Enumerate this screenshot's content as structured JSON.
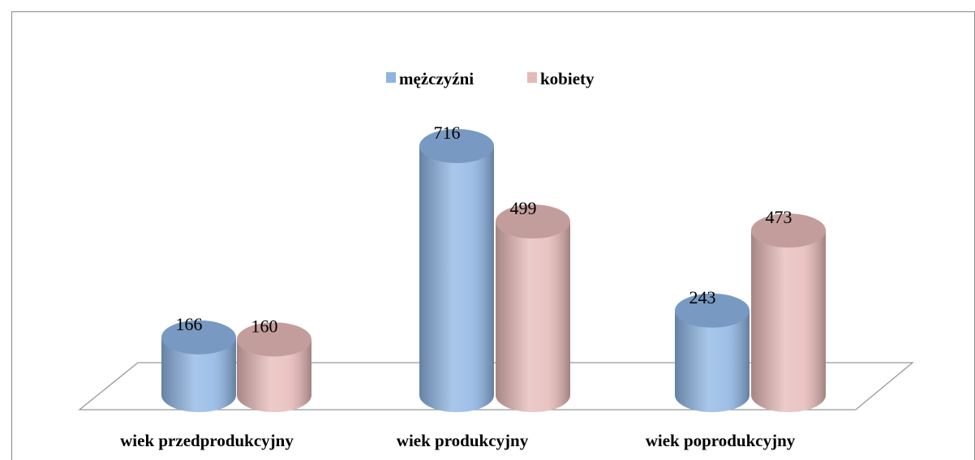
{
  "chart_data": {
    "type": "bar3d",
    "categories": [
      "wiek przedprodukcyjny",
      "wiek produkcyjny",
      "wiek poprodukcyjny"
    ],
    "series": [
      {
        "name": "mężczyźni",
        "color": "#8db4e3",
        "values": [
          166,
          716,
          243
        ]
      },
      {
        "name": "kobiety",
        "color": "#e6b9b8",
        "values": [
          160,
          499,
          473
        ]
      }
    ],
    "legend": "top"
  }
}
